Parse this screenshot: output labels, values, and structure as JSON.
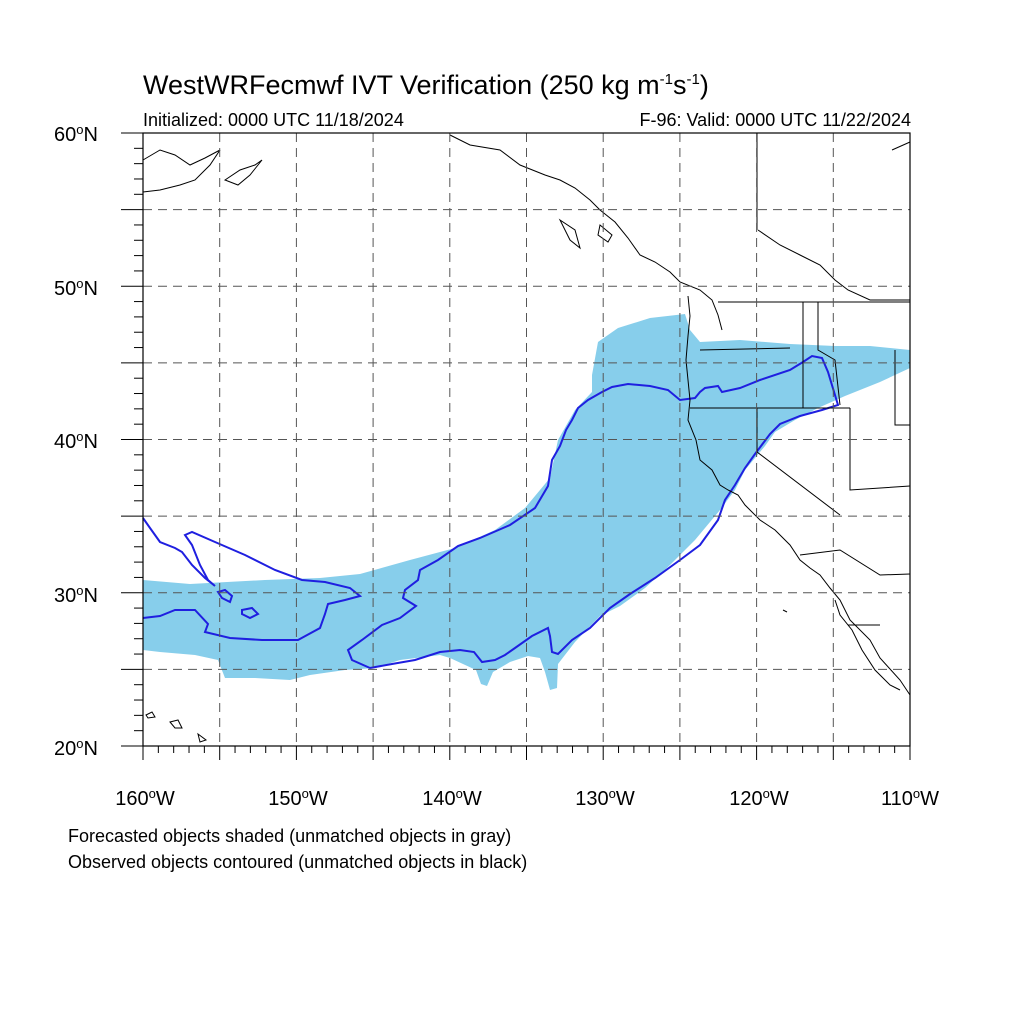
{
  "title": {
    "main": "WestWRFecmwf IVT Verification (250 kg m",
    "exp1": "-1",
    "mid": "s",
    "exp2": "-1",
    "close": ")"
  },
  "subtitle_left": "Initialized: 0000 UTC 11/18/2024",
  "subtitle_right": "F-96: Valid: 0000 UTC 11/22/2024",
  "lat_labels": [
    {
      "num": "60",
      "hem": "N"
    },
    {
      "num": "50",
      "hem": "N"
    },
    {
      "num": "40",
      "hem": "N"
    },
    {
      "num": "30",
      "hem": "N"
    },
    {
      "num": "20",
      "hem": "N"
    }
  ],
  "lon_labels": [
    {
      "num": "160",
      "hem": "W"
    },
    {
      "num": "150",
      "hem": "W"
    },
    {
      "num": "140",
      "hem": "W"
    },
    {
      "num": "130",
      "hem": "W"
    },
    {
      "num": "120",
      "hem": "W"
    },
    {
      "num": "110",
      "hem": "W"
    }
  ],
  "degree_symbol": "o",
  "footnote_1": "Forecasted objects shaded (unmatched objects in gray)",
  "footnote_2": "Observed objects contoured (unmatched objects in black)",
  "map": {
    "lon_range": [
      -160,
      -110
    ],
    "lat_range": [
      20,
      60
    ],
    "grid_lons": [
      -155,
      -150,
      -145,
      -140,
      -135,
      -130,
      -125,
      -120,
      -115
    ],
    "grid_lats": [
      25,
      30,
      35,
      40,
      45,
      50,
      55
    ],
    "forecast_fill_color": "#87ceeb",
    "observed_contour_color": "#1f1fe0",
    "coastline_color": "#000000"
  }
}
